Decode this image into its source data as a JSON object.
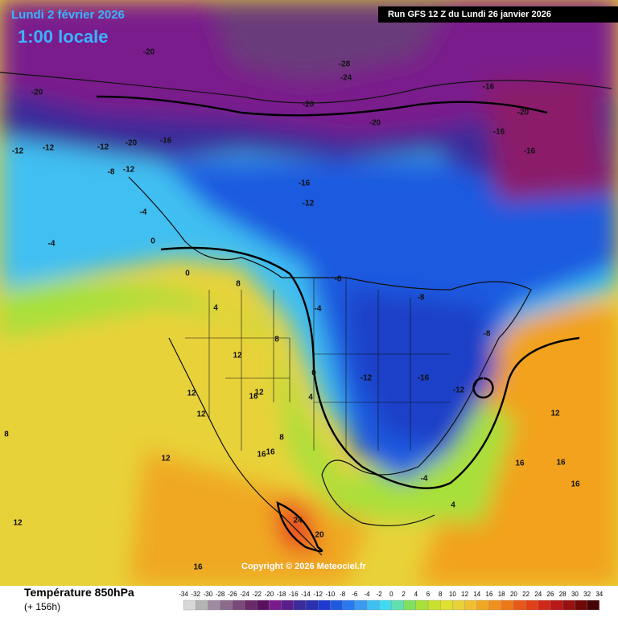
{
  "header": {
    "date": "Lundi 2 février 2026",
    "time": "1:00 locale",
    "run": "Run GFS 12 Z du Lundi 26 janvier 2026"
  },
  "footer": {
    "title": "Température 850hPa",
    "lead": "(+ 156h)",
    "copyright": "Copyright © 2026 Meteociel.fr"
  },
  "legend": {
    "ticks": [
      -34,
      -32,
      -30,
      -28,
      -26,
      -24,
      -22,
      -20,
      -18,
      -16,
      -14,
      -12,
      -10,
      -8,
      -6,
      -4,
      -2,
      0,
      2,
      4,
      6,
      8,
      10,
      12,
      14,
      16,
      18,
      20,
      22,
      24,
      26,
      28,
      30,
      32,
      34
    ]
  },
  "map_labels": [
    -20,
    -20,
    -28,
    -24,
    -20,
    -20,
    -16,
    -20,
    -16,
    -20,
    -16,
    -16,
    -12,
    -12,
    -12,
    -8,
    -12,
    -16,
    -12,
    -4,
    -4,
    0,
    0,
    4,
    8,
    -8,
    -4,
    0,
    4,
    8,
    12,
    12,
    12,
    16,
    -12,
    -16,
    -12,
    -8,
    -8,
    -4,
    4,
    8,
    12,
    16,
    16,
    16,
    20,
    24,
    12,
    12,
    16,
    8,
    12,
    16,
    16
  ]
}
